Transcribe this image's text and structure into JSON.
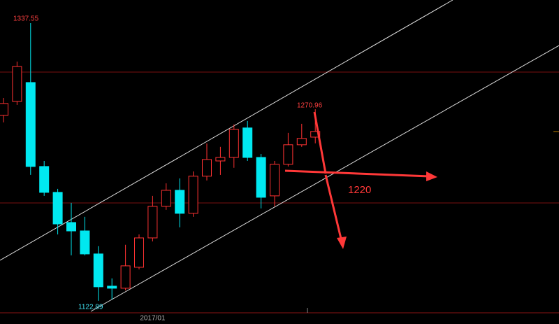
{
  "chart_data": {
    "type": "candlestick",
    "categories": [
      null,
      null,
      null,
      null,
      null,
      null,
      null,
      null,
      null,
      null,
      null,
      "2017/01",
      null,
      null,
      null,
      null,
      null,
      null,
      null,
      null,
      null,
      null,
      null,
      null
    ],
    "open": [
      1266.2,
      1277.0,
      1291.6,
      1226.7,
      1206.7,
      1183.4,
      1176.9,
      1159.1,
      1134.2,
      1132.6,
      1148.8,
      1171.5,
      1195.9,
      1208.3,
      1190.5,
      1219.2,
      1231.0,
      1233.7,
      1256.5,
      1233.7,
      1204.0,
      1228.4,
      1243.5,
      1249.4
    ],
    "high": [
      1279.7,
      1307.8,
      1337.55,
      1231.0,
      1209.4,
      1198.6,
      1187.8,
      1165.1,
      1140.2,
      1166.2,
      1174.2,
      1204.0,
      1213.7,
      1217.5,
      1222.9,
      1244.6,
      1241.9,
      1259.2,
      1261.9,
      1236.4,
      1231.0,
      1252.7,
      1259.7,
      1270.96
    ],
    "low": [
      1260.8,
      1274.3,
      1220.2,
      1204.0,
      1174.2,
      1158.0,
      1158.0,
      1122.89,
      1124.0,
      1131.0,
      1147.2,
      1168.8,
      1193.2,
      1179.7,
      1187.8,
      1215.9,
      1220.2,
      1225.7,
      1231.0,
      1194.3,
      1195.9,
      1226.7,
      1241.9,
      1244.6
    ],
    "close": [
      1275.4,
      1304.0,
      1226.7,
      1206.7,
      1182.3,
      1176.9,
      1159.1,
      1133.7,
      1132.6,
      1149.9,
      1171.5,
      1195.9,
      1208.3,
      1190.5,
      1219.2,
      1232.1,
      1233.7,
      1255.4,
      1233.7,
      1202.9,
      1228.4,
      1243.5,
      1248.4,
      1253.8
    ],
    "up_color": "#ff3232",
    "down_color": "#00e8f0",
    "ylim": [
      1113.6,
      1355.4
    ],
    "high_label": 1337.55,
    "low_label": 1122.89,
    "recent_high_label": 1270.96,
    "target_label": 1220
  }
}
